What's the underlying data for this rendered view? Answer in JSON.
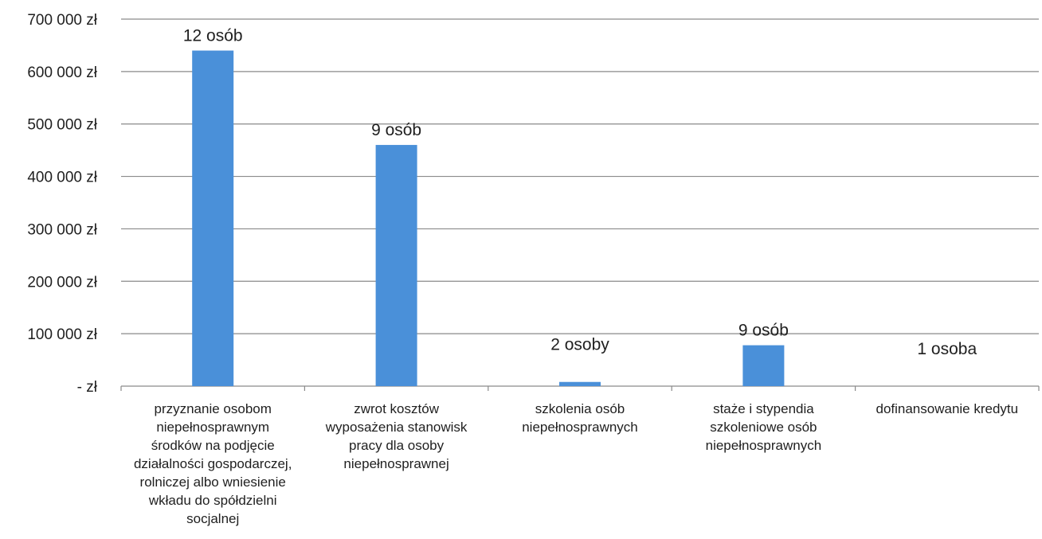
{
  "chart_data": {
    "type": "bar",
    "title": "",
    "xlabel": "",
    "ylabel": "",
    "ylim": [
      0,
      700000
    ],
    "y_ticks": [
      0,
      100000,
      200000,
      300000,
      400000,
      500000,
      600000,
      700000
    ],
    "y_tick_labels": [
      "- zł",
      "100 000 zł",
      "200 000 zł",
      "300 000 zł",
      "400 000 zł",
      "500 000 zł",
      "600 000 zł",
      "700 000 zł"
    ],
    "grid": true,
    "bar_color": "#4a90d9",
    "categories": [
      [
        "przyznanie osobom",
        "niepełnosprawnym",
        "środków na podjęcie",
        "działalności gospodarczej,",
        "rolniczej albo wniesienie",
        "wkładu do spółdzielni",
        "socjalnej"
      ],
      [
        "zwrot kosztów",
        "wyposażenia stanowisk",
        "pracy dla osoby",
        "niepełnosprawnej"
      ],
      [
        "szkolenia osób",
        "niepełnosprawnych"
      ],
      [
        "staże i stypendia",
        "szkoleniowe osób",
        "niepełnosprawnych"
      ],
      [
        "dofinansowanie kredytu"
      ]
    ],
    "values": [
      640000,
      460000,
      8000,
      78000,
      0
    ],
    "data_labels": [
      "12 osób",
      "9 osób",
      "2 osoby",
      "9 osób",
      "1 osoba"
    ]
  }
}
